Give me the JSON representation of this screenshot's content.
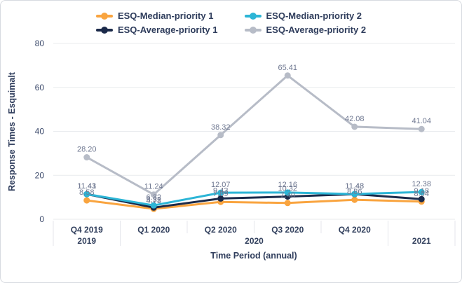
{
  "legend": {
    "items": [
      {
        "label": "ESQ-Median-priority 1"
      },
      {
        "label": "ESQ-Median-priority 2"
      },
      {
        "label": "ESQ-Average-priority 1"
      },
      {
        "label": "ESQ-Average-priority 2"
      }
    ]
  },
  "chart_data": {
    "type": "line",
    "categories": [
      "Q4 2019",
      "Q1 2020",
      "Q2 2020",
      "Q3 2020",
      "Q4 2020",
      "2021"
    ],
    "quarter_labels": [
      "Q4 2019",
      "Q1 2020",
      "Q2 2020",
      "Q3 2020",
      "Q4 2020",
      ""
    ],
    "year_groups": [
      {
        "label": "2019",
        "start": 0,
        "end": 0
      },
      {
        "label": "2020",
        "start": 1,
        "end": 4
      },
      {
        "label": "2021",
        "start": 5,
        "end": 5
      }
    ],
    "series": [
      {
        "name": "ESQ-Median-priority 1",
        "color": "#f9a43f",
        "values": [
          8.58,
          4.73,
          7.89,
          7.4,
          8.86,
          8.04
        ]
      },
      {
        "name": "ESQ-Median-priority 2",
        "color": "#2cb5d6",
        "values": [
          11.43,
          6.32,
          12.07,
          12.16,
          11.48,
          12.38
        ]
      },
      {
        "name": "ESQ-Average-priority 1",
        "color": "#1b2a4a",
        "values": [
          11.41,
          5.32,
          9.43,
          10.32,
          11.43,
          9.18
        ]
      },
      {
        "name": "ESQ-Average-priority 2",
        "color": "#b7bcc7",
        "values": [
          28.2,
          11.24,
          38.32,
          65.41,
          42.08,
          41.04
        ]
      }
    ],
    "title": "",
    "xlabel": "Time Period (annual)",
    "ylabel": "Response Times - Esquimalt",
    "y_ticks": [
      0,
      20,
      40,
      60,
      80
    ],
    "ylim": [
      0,
      80
    ],
    "grid": true,
    "legend_position": "top",
    "data_labels": true,
    "colors": {
      "grid_line": "#e9ebee",
      "divider": "#e4e6eb",
      "axis_text": "#33415e",
      "tick_text": "#3c4a6b",
      "data_label_text": "#6f7891"
    }
  }
}
